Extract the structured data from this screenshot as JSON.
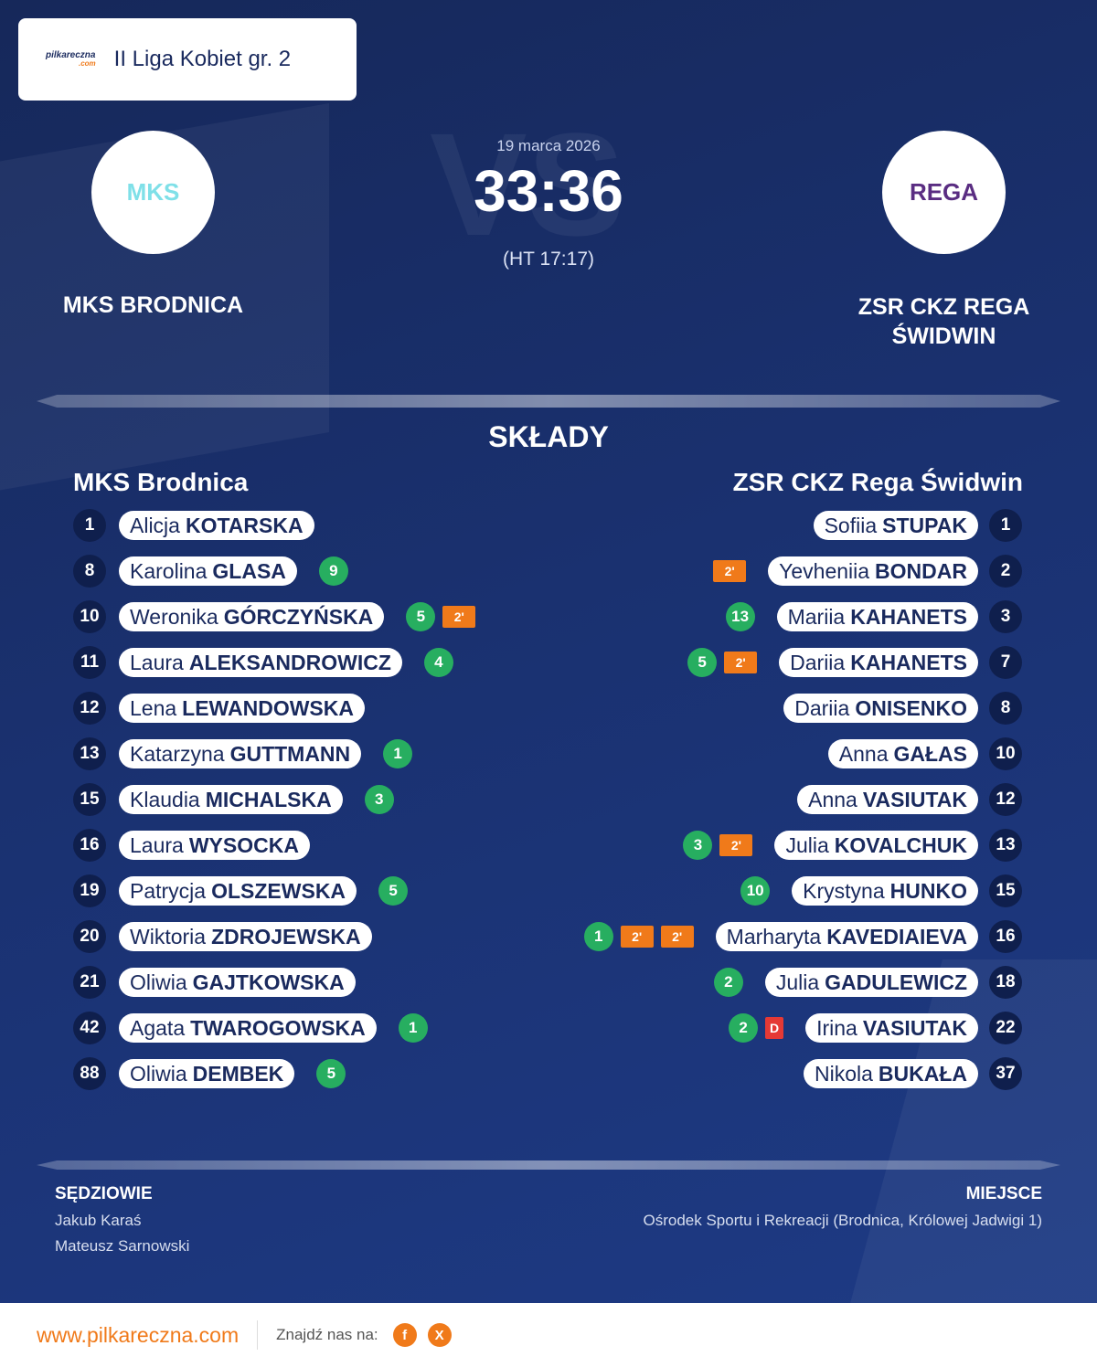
{
  "header": {
    "logo": {
      "name": "pilkareczna",
      "domain": ".com"
    },
    "league": "II Liga Kobiet gr. 2"
  },
  "match": {
    "watermark": "VS",
    "date": "19 marca 2026",
    "score": "33:36",
    "halftime": "(HT 17:17)",
    "home": {
      "name": "MKS BRODNICA",
      "logo": "MKS"
    },
    "away": {
      "name": "ZSR CKZ REGA ŚWIDWIN",
      "logo": "REGA"
    }
  },
  "lineups": {
    "title": "SKŁADY",
    "home": {
      "team": "MKS Brodnica",
      "players": [
        {
          "number": 1,
          "first": "Alicja",
          "last": "KOTARSKA"
        },
        {
          "number": 8,
          "first": "Karolina",
          "last": "GLASA",
          "goals": 9
        },
        {
          "number": 10,
          "first": "Weronika",
          "last": "GÓRCZYŃSKA",
          "goals": 5,
          "penalties": [
            "2'"
          ]
        },
        {
          "number": 11,
          "first": "Laura",
          "last": "ALEKSANDROWICZ",
          "goals": 4
        },
        {
          "number": 12,
          "first": "Lena",
          "last": "LEWANDOWSKA"
        },
        {
          "number": 13,
          "first": "Katarzyna",
          "last": "GUTTMANN",
          "goals": 1
        },
        {
          "number": 15,
          "first": "Klaudia",
          "last": "MICHALSKA",
          "goals": 3
        },
        {
          "number": 16,
          "first": "Laura",
          "last": "WYSOCKA"
        },
        {
          "number": 19,
          "first": "Patrycja",
          "last": "OLSZEWSKA",
          "goals": 5
        },
        {
          "number": 20,
          "first": "Wiktoria",
          "last": "ZDROJEWSKA"
        },
        {
          "number": 21,
          "first": "Oliwia",
          "last": "GAJTKOWSKA"
        },
        {
          "number": 42,
          "first": "Agata",
          "last": "TWAROGOWSKA",
          "goals": 1
        },
        {
          "number": 88,
          "first": "Oliwia",
          "last": "DEMBEK",
          "goals": 5
        }
      ]
    },
    "away": {
      "team": "ZSR CKZ Rega Świdwin",
      "players": [
        {
          "number": 1,
          "first": "Sofiia",
          "last": "STUPAK"
        },
        {
          "number": 2,
          "first": "Yevheniia",
          "last": "BONDAR",
          "penalties": [
            "2'"
          ]
        },
        {
          "number": 3,
          "first": "Mariia",
          "last": "KAHANETS",
          "goals": 13
        },
        {
          "number": 7,
          "first": "Dariia",
          "last": "KAHANETS",
          "goals": 5,
          "penalties": [
            "2'"
          ]
        },
        {
          "number": 8,
          "first": "Dariia",
          "last": "ONISENKO"
        },
        {
          "number": 10,
          "first": "Anna",
          "last": "GAŁAS"
        },
        {
          "number": 12,
          "first": "Anna",
          "last": "VASIUTAK"
        },
        {
          "number": 13,
          "first": "Julia",
          "last": "KOVALCHUK",
          "goals": 3,
          "penalties": [
            "2'"
          ]
        },
        {
          "number": 15,
          "first": "Krystyna",
          "last": "HUNKO",
          "goals": 10
        },
        {
          "number": 16,
          "first": "Marharyta",
          "last": "KAVEDIAIEVA",
          "goals": 1,
          "penalties": [
            "2'",
            "2'"
          ]
        },
        {
          "number": 18,
          "first": "Julia",
          "last": "GADULEWICZ",
          "goals": 2
        },
        {
          "number": 22,
          "first": "Irina",
          "last": "VASIUTAK",
          "goals": 2,
          "card": "D"
        },
        {
          "number": 37,
          "first": "Nikola",
          "last": "BUKAŁA"
        }
      ]
    }
  },
  "officials": {
    "referees_title": "SĘDZIOWIE",
    "referees": [
      "Jakub Karaś",
      "Mateusz Sarnowski"
    ],
    "venue_title": "MIEJSCE",
    "venue": "Ośrodek Sportu i Rekreacji (Brodnica, Królowej Jadwigi 1)"
  },
  "footer": {
    "website": "www.pilkareczna.com",
    "follow": "Znajdź nas na:",
    "social": [
      "f",
      "X"
    ]
  }
}
